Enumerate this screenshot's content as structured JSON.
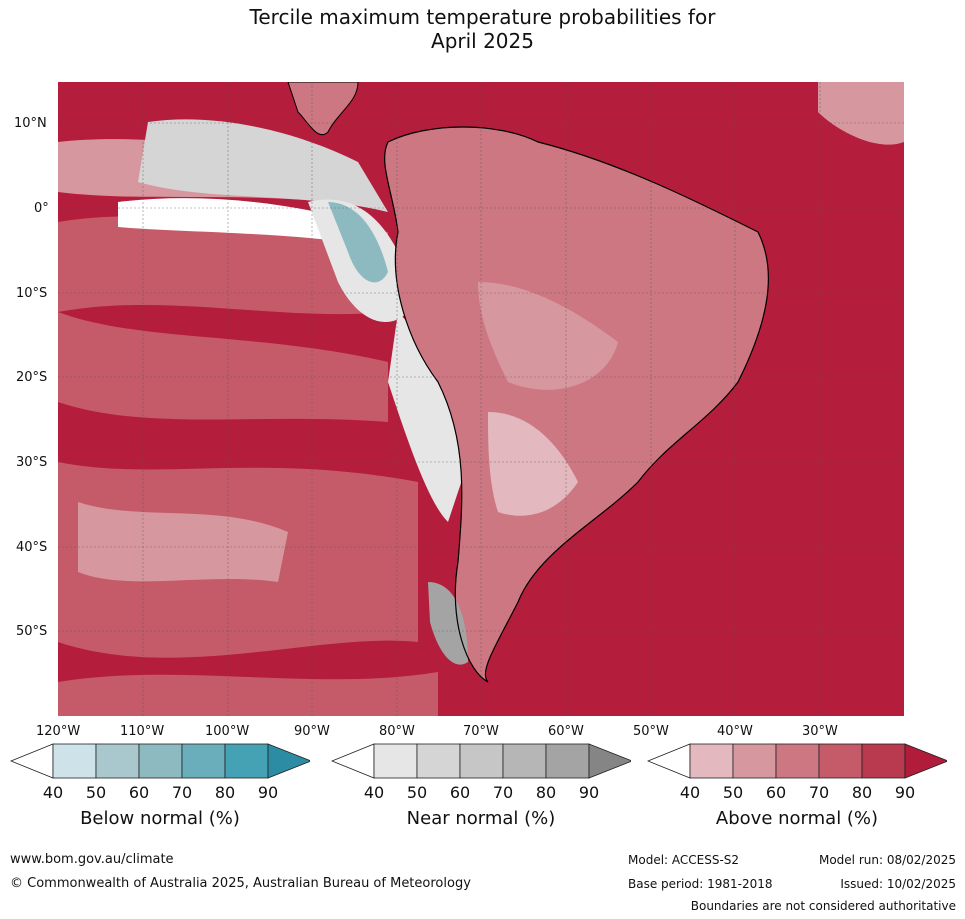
{
  "title": {
    "line1": "Tercile maximum temperature probabilities for",
    "line2": "April 2025"
  },
  "map": {
    "lat_labels": [
      "10°N",
      "0°",
      "10°S",
      "20°S",
      "30°S",
      "40°S",
      "50°S"
    ],
    "lon_labels": [
      "120°W",
      "110°W",
      "100°W",
      "90°W",
      "80°W",
      "70°W",
      "60°W",
      "50°W",
      "40°W",
      "30°W"
    ]
  },
  "legends": [
    {
      "title": "Below normal (%)",
      "ticks": [
        "40",
        "50",
        "60",
        "70",
        "80",
        "90"
      ],
      "colors": [
        "#ffffff",
        "#cde3e9",
        "#a9c8ce",
        "#8db9c1",
        "#6aaebc",
        "#45a2b4",
        "#2c8ca3"
      ]
    },
    {
      "title": "Near normal (%)",
      "ticks": [
        "40",
        "50",
        "60",
        "70",
        "80",
        "90"
      ],
      "colors": [
        "#ffffff",
        "#e6e6e6",
        "#d5d5d5",
        "#c6c6c6",
        "#b6b6b6",
        "#a4a4a4",
        "#858585"
      ]
    },
    {
      "title": "Above normal (%)",
      "ticks": [
        "40",
        "50",
        "60",
        "70",
        "80",
        "90"
      ],
      "colors": [
        "#ffffff",
        "#e3b9bf",
        "#d7979f",
        "#cd7782",
        "#c55b69",
        "#b93a4f",
        "#b01c3a"
      ]
    }
  ],
  "footer": {
    "website": "www.bom.gov.au/climate",
    "copyright": "© Commonwealth of Australia 2025, Australian Bureau of Meteorology",
    "model": "Model: ACCESS-S2",
    "model_run": "Model run: 08/02/2025",
    "base_period": "Base period: 1981-2018",
    "issued": "Issued: 10/02/2025",
    "disclaimer": "Boundaries are not considered authoritative"
  }
}
